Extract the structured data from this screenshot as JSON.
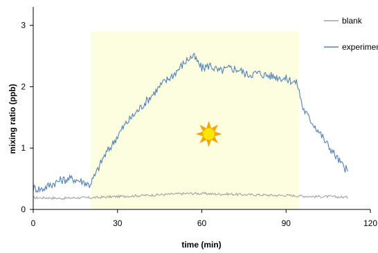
{
  "chart_data": {
    "type": "line",
    "title": "",
    "xlabel": "time (min)",
    "ylabel": "mixing ratio (ppb)",
    "xlim": [
      0,
      120
    ],
    "ylim": [
      0,
      3.3
    ],
    "xticks": [
      0,
      30,
      60,
      90,
      120
    ],
    "yticks": [
      0,
      1,
      2,
      3
    ],
    "legend_position": "top-right",
    "grid": false,
    "illuminated_period": {
      "x_start": 20.5,
      "x_end": 94.5,
      "y_top": 2.9,
      "color": "#fdfde0"
    },
    "sun_icon": {
      "x": 62.5,
      "y": 1.23,
      "name": "sun-icon"
    },
    "series": [
      {
        "name": "blank",
        "color": "#a0a0a0",
        "x": [
          0,
          5,
          10,
          15,
          20,
          25,
          30,
          35,
          40,
          45,
          50,
          55,
          60,
          65,
          70,
          75,
          80,
          85,
          90,
          95,
          100,
          105,
          110,
          112
        ],
        "y": [
          0.19,
          0.19,
          0.18,
          0.19,
          0.19,
          0.2,
          0.21,
          0.22,
          0.23,
          0.24,
          0.25,
          0.26,
          0.26,
          0.25,
          0.25,
          0.24,
          0.24,
          0.23,
          0.23,
          0.22,
          0.21,
          0.21,
          0.2,
          0.2
        ]
      },
      {
        "name": "experiment",
        "color": "#4f81bd",
        "x": [
          0,
          3,
          6,
          10,
          14,
          18,
          20,
          22,
          25,
          28,
          30,
          33,
          36,
          40,
          43,
          46,
          50,
          53,
          55,
          57,
          60,
          63,
          66,
          70,
          73,
          76,
          80,
          84,
          88,
          92,
          94,
          96,
          98,
          100,
          102,
          104,
          106,
          108,
          110,
          112
        ],
        "y": [
          0.35,
          0.33,
          0.4,
          0.48,
          0.5,
          0.45,
          0.4,
          0.55,
          0.85,
          1.05,
          1.2,
          1.4,
          1.55,
          1.75,
          1.9,
          2.05,
          2.2,
          2.35,
          2.45,
          2.5,
          2.3,
          2.35,
          2.25,
          2.3,
          2.28,
          2.2,
          2.22,
          2.18,
          2.15,
          2.1,
          2.05,
          1.65,
          1.5,
          1.38,
          1.25,
          1.1,
          0.98,
          0.85,
          0.72,
          0.62
        ]
      }
    ]
  }
}
